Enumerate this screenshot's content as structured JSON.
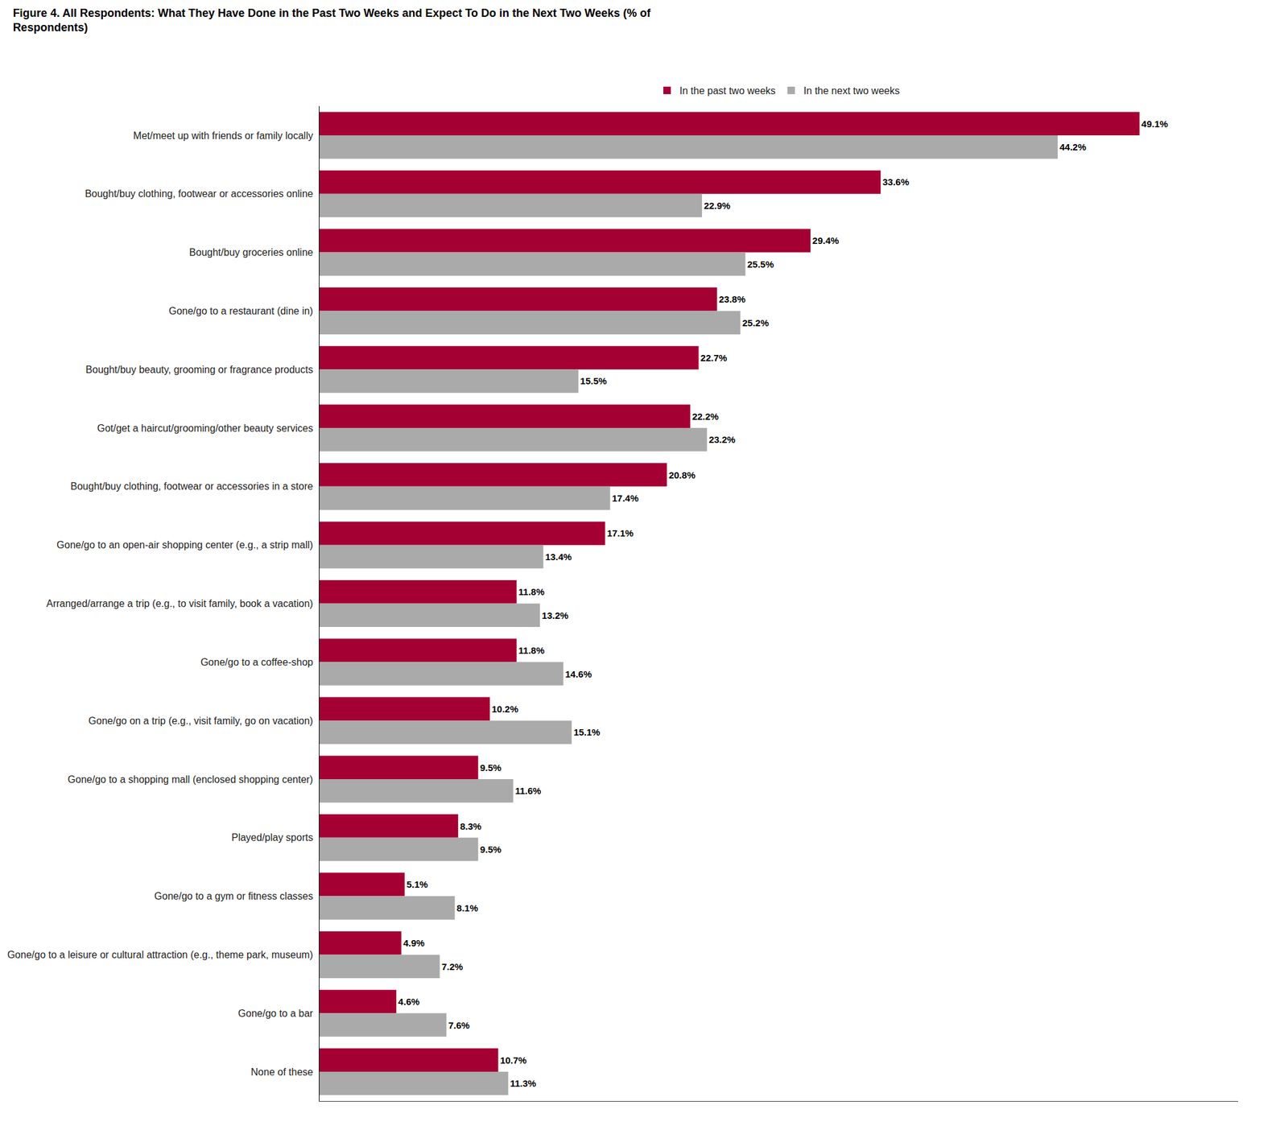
{
  "chart_data": {
    "type": "bar",
    "orientation": "horizontal",
    "title": "Figure 4. All Respondents: What They Have Done in the Past Two Weeks and Expect To Do in the Next Two Weeks (% of\nRespondents)",
    "categories": [
      "Met/meet up with friends or family locally",
      "Bought/buy clothing, footwear or accessories online",
      "Bought/buy groceries online",
      "Gone/go to a restaurant (dine in)",
      "Bought/buy beauty, grooming or fragrance products",
      "Got/get a haircut/grooming/other beauty services",
      "Bought/buy clothing, footwear or accessories in a store",
      "Gone/go to an open-air shopping center (e.g., a strip mall)",
      "Arranged/arrange a trip (e.g., to visit family, book a vacation)",
      "Gone/go to a coffee-shop",
      "Gone/go on a trip (e.g., visit family, go on vacation)",
      "Gone/go to a shopping mall (enclosed shopping center)",
      "Played/play sports",
      "Gone/go to a gym or fitness classes",
      "Gone/go to a leisure or cultural attraction (e.g., theme park, museum)",
      "Gone/go to a bar",
      "None of these"
    ],
    "series": [
      {
        "name": "In the past two weeks",
        "color": "#A50034",
        "values": [
          49.1,
          33.6,
          29.4,
          23.8,
          22.7,
          22.2,
          20.8,
          17.1,
          11.8,
          11.8,
          10.2,
          9.5,
          8.3,
          5.1,
          4.9,
          4.6,
          10.7
        ],
        "value_labels": [
          "49.1%",
          "33.6%",
          "29.4%",
          "23.8%",
          "22.7%",
          "22.2%",
          "20.8%",
          "17.1%",
          "11.8%",
          "11.8%",
          "10.2%",
          "9.5%",
          "8.3%",
          "5.1%",
          "4.9%",
          "4.6%",
          "10.7%"
        ]
      },
      {
        "name": "In the next two weeks",
        "color": "#AAAAAA",
        "values": [
          44.2,
          22.9,
          25.5,
          25.2,
          15.5,
          23.2,
          17.4,
          13.4,
          13.2,
          14.6,
          15.1,
          11.6,
          9.5,
          8.1,
          7.2,
          7.6,
          11.3
        ],
        "value_labels": [
          "44.2%",
          "22.9%",
          "25.5%",
          "25.2%",
          "15.5%",
          "23.2%",
          "17.4%",
          "13.4%",
          "13.2%",
          "14.6%",
          "15.1%",
          "11.6%",
          "9.5%",
          "8.1%",
          "7.2%",
          "7.6%",
          "11.3%"
        ]
      }
    ],
    "xlim": [
      0,
      55
    ],
    "grid": false,
    "legend": "top",
    "data_labels": true,
    "tick_labels": "y"
  }
}
